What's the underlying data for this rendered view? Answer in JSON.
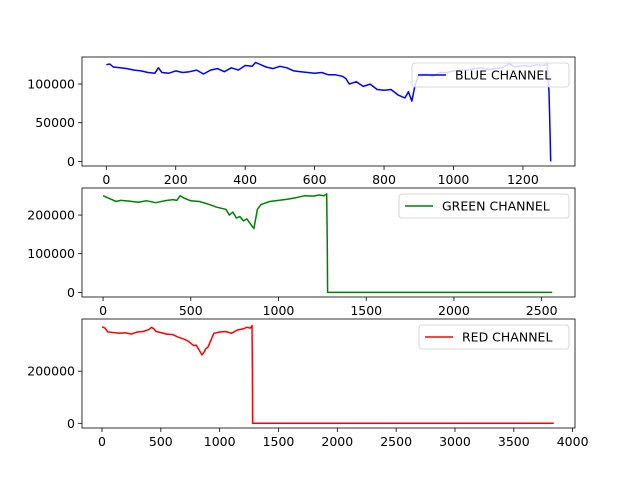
{
  "chart_data": [
    {
      "type": "line",
      "legend_position": "top-right",
      "xlim": [
        -70,
        1350
      ],
      "ylim": [
        -6000,
        135000
      ],
      "xticks": [
        0,
        200,
        400,
        600,
        800,
        1000,
        1200
      ],
      "yticks": [
        0,
        50000,
        100000
      ],
      "series": [
        {
          "name": "BLUE CHANNEL",
          "color": "#0000ff",
          "x": [
            0,
            10,
            20,
            40,
            60,
            80,
            100,
            120,
            140,
            150,
            160,
            180,
            200,
            220,
            240,
            260,
            280,
            300,
            320,
            340,
            360,
            380,
            400,
            420,
            430,
            440,
            460,
            480,
            500,
            520,
            540,
            560,
            580,
            600,
            620,
            640,
            660,
            680,
            690,
            700,
            720,
            740,
            760,
            780,
            800,
            820,
            840,
            860,
            870,
            880,
            890,
            900,
            920,
            940,
            960,
            980,
            1000,
            1020,
            1040,
            1060,
            1080,
            1100,
            1120,
            1140,
            1160,
            1180,
            1200,
            1220,
            1240,
            1260,
            1270,
            1275,
            1278,
            1280
          ],
          "y": [
            125000,
            126000,
            122000,
            121000,
            120000,
            118000,
            117000,
            115000,
            114000,
            121000,
            115000,
            114000,
            117000,
            115000,
            116000,
            118000,
            113000,
            118000,
            120000,
            116000,
            121000,
            118000,
            124000,
            123000,
            128000,
            126000,
            122000,
            120000,
            123000,
            121000,
            117000,
            116000,
            115000,
            114000,
            115000,
            112000,
            112000,
            110000,
            107000,
            100000,
            103000,
            97000,
            100000,
            93000,
            92000,
            93000,
            86000,
            82000,
            90000,
            78000,
            100000,
            112000,
            113000,
            110000,
            115000,
            115000,
            117000,
            118000,
            118000,
            120000,
            121000,
            119000,
            120000,
            121000,
            126000,
            122000,
            124000,
            123000,
            125000,
            124000,
            126000,
            90000,
            40000,
            0
          ]
        }
      ]
    },
    {
      "type": "line",
      "legend_position": "top-right",
      "xlim": [
        -120,
        2690
      ],
      "ylim": [
        -12000,
        270000
      ],
      "xticks": [
        0,
        500,
        1000,
        1500,
        2000,
        2500
      ],
      "yticks": [
        0,
        100000,
        200000
      ],
      "series": [
        {
          "name": "GREEN CHANNEL",
          "color": "#008000",
          "x": [
            0,
            25,
            50,
            75,
            100,
            150,
            200,
            250,
            300,
            350,
            400,
            420,
            440,
            460,
            500,
            550,
            600,
            650,
            700,
            720,
            740,
            760,
            780,
            800,
            820,
            840,
            860,
            880,
            900,
            950,
            1000,
            1050,
            1100,
            1150,
            1200,
            1230,
            1260,
            1275,
            1278,
            1280,
            1400,
            1600,
            1800,
            2000,
            2200,
            2400,
            2560
          ],
          "y": [
            250000,
            245000,
            240000,
            235000,
            238000,
            236000,
            233000,
            237000,
            232000,
            237000,
            240000,
            238000,
            250000,
            244000,
            237000,
            235000,
            228000,
            220000,
            215000,
            200000,
            208000,
            192000,
            196000,
            185000,
            190000,
            177000,
            165000,
            215000,
            227000,
            235000,
            238000,
            241000,
            245000,
            250000,
            249000,
            252000,
            250000,
            255000,
            120000,
            0,
            0,
            0,
            0,
            0,
            0,
            0,
            0
          ]
        }
      ]
    },
    {
      "type": "line",
      "legend_position": "top-right",
      "xlim": [
        -170,
        4020
      ],
      "ylim": [
        -18000,
        400000
      ],
      "xticks": [
        0,
        500,
        1000,
        1500,
        2000,
        2500,
        3000,
        3500,
        4000
      ],
      "yticks": [
        0,
        200000
      ],
      "series": [
        {
          "name": "RED CHANNEL",
          "color": "#ff0000",
          "x": [
            0,
            25,
            50,
            100,
            150,
            200,
            250,
            300,
            350,
            400,
            420,
            440,
            460,
            500,
            550,
            600,
            650,
            700,
            720,
            740,
            760,
            780,
            800,
            820,
            850,
            870,
            880,
            900,
            950,
            1000,
            1050,
            1100,
            1150,
            1200,
            1230,
            1260,
            1275,
            1278,
            1280,
            1500,
            2000,
            2500,
            3000,
            3500,
            3840
          ],
          "y": [
            370000,
            365000,
            350000,
            348000,
            345000,
            347000,
            342000,
            350000,
            352000,
            360000,
            368000,
            362000,
            352000,
            348000,
            342000,
            340000,
            330000,
            322000,
            318000,
            312000,
            305000,
            298000,
            300000,
            285000,
            262000,
            275000,
            285000,
            292000,
            345000,
            350000,
            352000,
            345000,
            358000,
            362000,
            368000,
            365000,
            375000,
            200000,
            0,
            0,
            0,
            0,
            0,
            0,
            0
          ]
        }
      ]
    }
  ]
}
